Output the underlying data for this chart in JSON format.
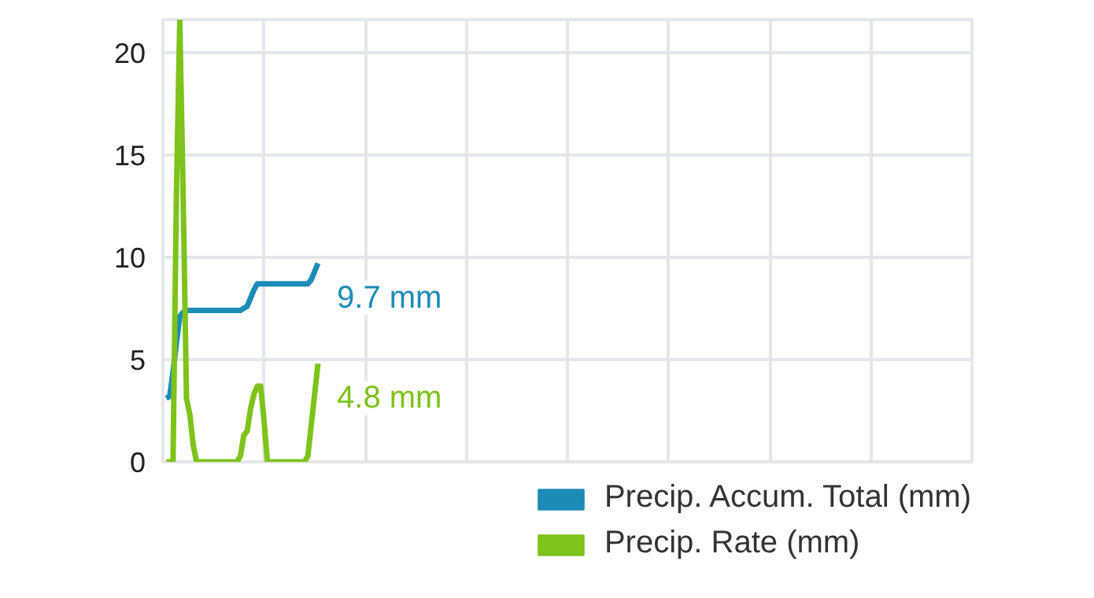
{
  "chart_data": {
    "type": "line",
    "tick_labels": "y",
    "grid": true,
    "legend": "bottom right",
    "line_style": "solid",
    "marker": "none",
    "categories": [
      null,
      null,
      null,
      null,
      null,
      null,
      null,
      null,
      null,
      null,
      null,
      null,
      null,
      null,
      null,
      null,
      null,
      null,
      null,
      null,
      null,
      null,
      null,
      null,
      null,
      null,
      null,
      null,
      null,
      null,
      null,
      null,
      null,
      null,
      null,
      null,
      null,
      null,
      null,
      null,
      null,
      null,
      null,
      null,
      null,
      null,
      null,
      null,
      null,
      null,
      null,
      null,
      null,
      null,
      null,
      null,
      null,
      null,
      null,
      null,
      null,
      null,
      null,
      null,
      null,
      null,
      null,
      null,
      null,
      null,
      null,
      null,
      null,
      null,
      null,
      null,
      null,
      null,
      null,
      null,
      null,
      null,
      null,
      null,
      null,
      null,
      null,
      null,
      null,
      null,
      null,
      null,
      null,
      null,
      null,
      null,
      null,
      null,
      null,
      null,
      null,
      null,
      null,
      null,
      null,
      null,
      null,
      null,
      null,
      null,
      null,
      null,
      null,
      null,
      null,
      null,
      null,
      null,
      null,
      null,
      null,
      null,
      null,
      null,
      null,
      null,
      null,
      null,
      null,
      null,
      null,
      null,
      null,
      null,
      null,
      null,
      null,
      null,
      null,
      null,
      null,
      null,
      null,
      null,
      null,
      null,
      null,
      null,
      null,
      null,
      null,
      null,
      null,
      null,
      null,
      null,
      null,
      null,
      null,
      null,
      null,
      null,
      null,
      null,
      null,
      null,
      null,
      null,
      null,
      null,
      null,
      null,
      null,
      null,
      null,
      null,
      null,
      null,
      null,
      null,
      null,
      null,
      null,
      null,
      null,
      null,
      null,
      null,
      null,
      null,
      null,
      null,
      null,
      null,
      null,
      null,
      null,
      null,
      null,
      null,
      null,
      null,
      null,
      null,
      null,
      null,
      null,
      null,
      null,
      null,
      null,
      null,
      null,
      null,
      null,
      null,
      null,
      null,
      null,
      null,
      null,
      null,
      null,
      null,
      null,
      null,
      null,
      null,
      null,
      null,
      null,
      null,
      null,
      null,
      null,
      null,
      null,
      null,
      null,
      null,
      null
    ],
    "ylim": [
      0,
      21.6
    ],
    "yticks": [
      0,
      5,
      10,
      15,
      20
    ],
    "series": [
      {
        "name": "Precip. Accum. Total (mm)",
        "color": "#1b8cb8",
        "values": [
          null,
          3.1,
          3.2,
          4.4,
          5.8,
          7.1,
          7.3,
          7.4,
          7.4,
          7.4,
          7.4,
          7.4,
          7.4,
          7.4,
          7.4,
          7.4,
          7.4,
          7.4,
          7.4,
          7.4,
          7.4,
          7.4,
          7.4,
          7.4,
          7.5,
          7.6,
          8.0,
          8.4,
          8.7,
          8.7,
          8.7,
          8.7,
          8.7,
          8.7,
          8.7,
          8.7,
          8.7,
          8.7,
          8.7,
          8.7,
          8.7,
          8.7,
          8.7,
          8.7,
          8.9,
          9.3,
          9.7,
          null,
          null,
          null,
          null,
          null,
          null,
          null,
          null,
          null,
          null,
          null,
          null,
          null,
          null,
          null,
          null,
          null,
          null,
          null,
          null,
          null,
          null,
          null,
          null,
          null,
          null,
          null,
          null,
          null,
          null,
          null,
          null,
          null,
          null,
          null,
          null,
          null,
          null,
          null,
          null,
          null,
          null,
          null,
          null,
          null,
          null,
          null,
          null,
          null,
          null,
          null,
          null,
          null,
          null,
          null,
          null,
          null,
          null,
          null,
          null,
          null,
          null,
          null,
          null,
          null,
          null,
          null,
          null,
          null,
          null,
          null,
          null,
          null,
          null,
          null,
          null,
          null,
          null,
          null,
          null,
          null,
          null,
          null,
          null,
          null,
          null,
          null,
          null,
          null,
          null,
          null,
          null,
          null,
          null,
          null,
          null,
          null,
          null,
          null,
          null,
          null,
          null,
          null,
          null,
          null,
          null,
          null,
          null,
          null,
          null,
          null,
          null,
          null,
          null,
          null,
          null,
          null,
          null,
          null,
          null,
          null,
          null,
          null,
          null,
          null,
          null,
          null,
          null,
          null,
          null,
          null,
          null,
          null,
          null,
          null,
          null,
          null,
          null,
          null,
          null,
          null,
          null,
          null,
          null,
          null,
          null,
          null,
          null,
          null,
          null,
          null,
          null,
          null,
          null,
          null,
          null,
          null,
          null,
          null,
          null,
          null,
          null,
          null,
          null,
          null,
          null,
          null,
          null,
          null,
          null,
          null,
          null,
          null,
          null,
          null,
          null,
          null,
          null,
          null,
          null,
          null,
          null,
          null,
          null,
          null,
          null,
          null,
          null,
          null,
          null,
          null,
          null,
          null,
          null
        ]
      },
      {
        "name": "Precip. Rate (mm)",
        "color": "#7dc31a",
        "values": [
          null,
          0,
          0,
          0,
          13,
          21.6,
          13,
          3.1,
          2.3,
          0.8,
          0,
          0,
          0,
          0,
          0,
          0,
          0,
          0,
          0,
          0,
          0,
          0,
          0,
          0.3,
          1.3,
          1.5,
          2.6,
          3.3,
          3.7,
          3.7,
          2.0,
          0,
          0,
          0,
          0,
          0,
          0,
          0,
          0,
          0,
          0,
          0,
          0,
          0.3,
          1.8,
          3.3,
          4.8,
          null,
          null,
          null,
          null,
          null,
          null,
          null,
          null,
          null,
          null,
          null,
          null,
          null,
          null,
          null,
          null,
          null,
          null,
          null,
          null,
          null,
          null,
          null,
          null,
          null,
          null,
          null,
          null,
          null,
          null,
          null,
          null,
          null,
          null,
          null,
          null,
          null,
          null,
          null,
          null,
          null,
          null,
          null,
          null,
          null,
          null,
          null,
          null,
          null,
          null,
          null,
          null,
          null,
          null,
          null,
          null,
          null,
          null,
          null,
          null,
          null,
          null,
          null,
          null,
          null,
          null,
          null,
          null,
          null,
          null,
          null,
          null,
          null,
          null,
          null,
          null,
          null,
          null,
          null,
          null,
          null,
          null,
          null,
          null,
          null,
          null,
          null,
          null,
          null,
          null,
          null,
          null,
          null,
          null,
          null,
          null,
          null,
          null,
          null,
          null,
          null,
          null,
          null,
          null,
          null,
          null,
          null,
          null,
          null,
          null,
          null,
          null,
          null,
          null,
          null,
          null,
          null,
          null,
          null,
          null,
          null,
          null,
          null,
          null,
          null,
          null,
          null,
          null,
          null,
          null,
          null,
          null,
          null,
          null,
          null,
          null,
          null,
          null,
          null,
          null,
          null,
          null,
          null,
          null,
          null,
          null,
          null,
          null,
          null,
          null,
          null,
          null,
          null,
          null,
          null,
          null,
          null,
          null,
          null,
          null,
          null,
          null,
          null,
          null,
          null,
          null,
          null,
          null,
          null,
          null,
          null,
          null,
          null,
          null,
          null,
          null,
          null,
          null,
          null,
          null,
          null,
          null,
          null,
          null,
          null,
          null,
          null,
          null,
          null,
          null,
          null,
          null,
          null,
          null
        ]
      }
    ],
    "annotations": [
      "9.7 mm",
      "4.8 mm"
    ]
  }
}
